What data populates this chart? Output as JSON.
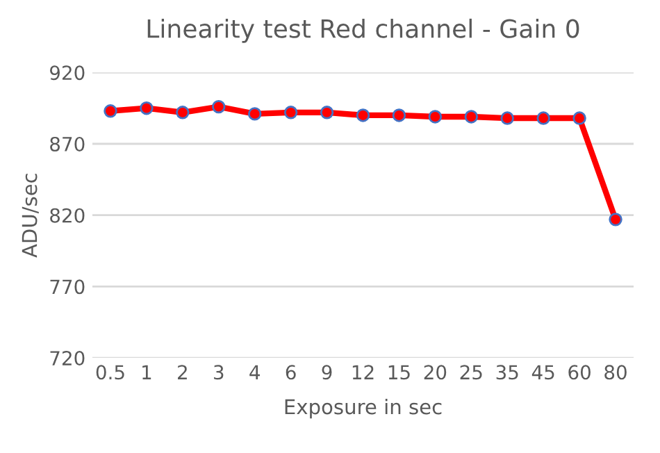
{
  "chart_data": {
    "type": "line",
    "title": "Linearity test Red channel - Gain 0",
    "xlabel": "Exposure in sec",
    "ylabel": "ADU/sec",
    "categories": [
      "0.5",
      "1",
      "2",
      "3",
      "4",
      "6",
      "9",
      "12",
      "15",
      "20",
      "25",
      "35",
      "45",
      "60",
      "80"
    ],
    "series": [
      {
        "color": "#ff0000",
        "values": [
          893,
          895,
          892,
          896,
          891,
          892,
          892,
          890,
          890,
          889,
          889,
          888,
          888,
          888,
          817
        ]
      }
    ],
    "ylim": [
      720,
      920
    ],
    "yticks": [
      720,
      770,
      820,
      870,
      920
    ],
    "grid": "y",
    "marker": "circle",
    "line_style": "solid"
  }
}
